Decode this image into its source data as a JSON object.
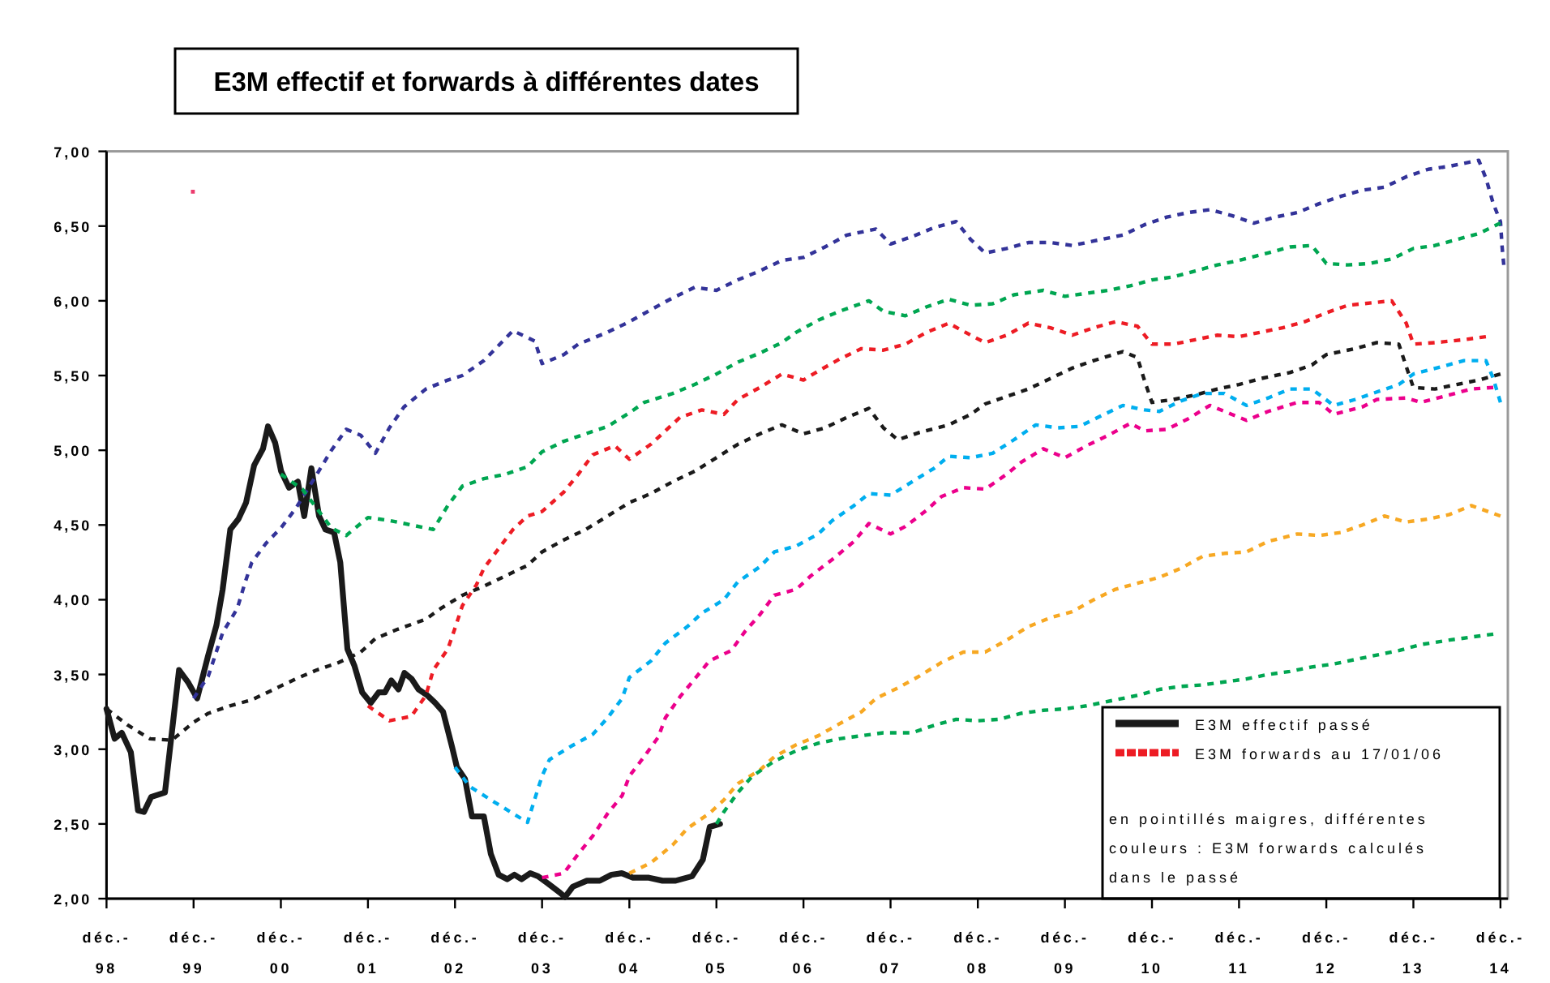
{
  "chart_data": {
    "type": "line",
    "title": "E3M effectif et forwards à différentes dates",
    "xlim": [
      "1998-12",
      "2015-01"
    ],
    "ylim": [
      2,
      7
    ],
    "xticks": [
      {
        "value": "1998-12",
        "label": "déc.-\n98"
      },
      {
        "value": "1999-12",
        "label": "déc.-\n99"
      },
      {
        "value": "2000-12",
        "label": "déc.-\n00"
      },
      {
        "value": "2001-12",
        "label": "déc.-\n01"
      },
      {
        "value": "2002-12",
        "label": "déc.-\n02"
      },
      {
        "value": "2003-12",
        "label": "déc.-\n03"
      },
      {
        "value": "2004-12",
        "label": "déc.-\n04"
      },
      {
        "value": "2005-12",
        "label": "déc.-\n05"
      },
      {
        "value": "2006-12",
        "label": "déc.-\n06"
      },
      {
        "value": "2007-12",
        "label": "déc.-\n07"
      },
      {
        "value": "2008-12",
        "label": "déc.-\n08"
      },
      {
        "value": "2009-12",
        "label": "déc.-\n09"
      },
      {
        "value": "2010-12",
        "label": "déc.-\n10"
      },
      {
        "value": "2011-12",
        "label": "déc.-\n11"
      },
      {
        "value": "2012-12",
        "label": "déc.-\n12"
      },
      {
        "value": "2013-12",
        "label": "déc.-\n13"
      },
      {
        "value": "2014-12",
        "label": "déc.-\n14"
      }
    ],
    "yticks": [
      {
        "value": 2,
        "label": "2,00"
      },
      {
        "value": 2.5,
        "label": "2,50"
      },
      {
        "value": 3,
        "label": "3,00"
      },
      {
        "value": 3.5,
        "label": "3,50"
      },
      {
        "value": 4,
        "label": "4,00"
      },
      {
        "value": 4.5,
        "label": "4,50"
      },
      {
        "value": 5,
        "label": "5,00"
      },
      {
        "value": 5.5,
        "label": "5,50"
      },
      {
        "value": 6,
        "label": "6,00"
      },
      {
        "value": 6.5,
        "label": "6,50"
      },
      {
        "value": 7,
        "label": "7,00"
      }
    ],
    "legend": "bottom right",
    "annotations": [
      "en pointillés maigres, différentes couleurs : E3M forwards calculés dans le passé"
    ],
    "series": [
      {
        "name": "E3M effectif passé",
        "color": "#1a1a1a",
        "line_style": "solid",
        "x": [
          "1998-12-01",
          "1999-01-04",
          "1999-02-03",
          "1999-03-13",
          "1999-04-12",
          "1999-05-07",
          "1999-06-06",
          "1999-08-03",
          "1999-10-01",
          "1999-11-07",
          "1999-12-16",
          "2000-01-30",
          "2000-03-06",
          "2000-04-01",
          "2000-05-03",
          "2000-06-06",
          "2000-07-08",
          "2000-08-11",
          "2000-09-17",
          "2000-10-08",
          "2000-11-07",
          "2000-12-02",
          "2001-01-04",
          "2001-02-10",
          "2001-03-09",
          "2001-04-08",
          "2001-05-10",
          "2001-06-06",
          "2001-07-12",
          "2001-08-07",
          "2001-09-06",
          "2001-10-05",
          "2001-11-07",
          "2001-12-13",
          "2002-01-15",
          "2002-02-10",
          "2002-03-09",
          "2002-04-08",
          "2002-05-03",
          "2002-06-02",
          "2002-07-01",
          "2002-08-07",
          "2002-09-09",
          "2002-10-12",
          "2002-11-18",
          "2002-12-09",
          "2003-01-12",
          "2003-02-10",
          "2003-04-01",
          "2003-04-30",
          "2003-06-02",
          "2003-07-08",
          "2003-08-07",
          "2003-09-06",
          "2003-10-12",
          "2003-11-14",
          "2003-12-27",
          "2004-02-14",
          "2004-03-06",
          "2004-04-08",
          "2004-06-06",
          "2004-07-30",
          "2004-09-17",
          "2004-10-30",
          "2004-12-16",
          "2005-02-21",
          "2005-04-19",
          "2005-06-13",
          "2005-08-21",
          "2005-10-05",
          "2005-11-03",
          "2005-12-16"
        ],
        "values": [
          3.27,
          3.07,
          3.11,
          2.98,
          2.59,
          2.58,
          2.68,
          2.71,
          3.53,
          3.45,
          3.34,
          3.62,
          3.83,
          4.07,
          4.47,
          4.54,
          4.65,
          4.9,
          5.01,
          5.16,
          5.05,
          4.86,
          4.75,
          4.79,
          4.56,
          4.88,
          4.56,
          4.47,
          4.45,
          4.25,
          3.67,
          3.56,
          3.38,
          3.31,
          3.38,
          3.38,
          3.46,
          3.4,
          3.51,
          3.47,
          3.4,
          3.36,
          3.31,
          3.25,
          3.02,
          2.88,
          2.8,
          2.55,
          2.55,
          2.3,
          2.16,
          2.13,
          2.16,
          2.13,
          2.17,
          2.15,
          2.1,
          2.04,
          2.01,
          2.08,
          2.12,
          2.12,
          2.16,
          2.17,
          2.14,
          2.14,
          2.12,
          2.12,
          2.15,
          2.26,
          2.48,
          2.5
        ]
      },
      {
        "name": "E3M forwards au 17/01/06",
        "color": "#ed1c24",
        "line_style": "dashed",
        "x": [
          "2001-12",
          "2002-03",
          "2002-06",
          "2002-08",
          "2002-09",
          "2002-11",
          "2002-12",
          "2003-01",
          "2003-03",
          "2003-04",
          "2003-06",
          "2003-08",
          "2003-10",
          "2003-12",
          "2004-03",
          "2004-05",
          "2004-07",
          "2004-10",
          "2004-12",
          "2005-03",
          "2005-05",
          "2005-07",
          "2005-10",
          "2006-01",
          "2006-03",
          "2006-06",
          "2006-09",
          "2006-12",
          "2007-02",
          "2007-05",
          "2007-08",
          "2007-11",
          "2008-02",
          "2008-05",
          "2008-08",
          "2008-11",
          "2009-01",
          "2009-04",
          "2009-07",
          "2009-10",
          "2010-01",
          "2010-04",
          "2010-07",
          "2010-10",
          "2010-12",
          "2011-03",
          "2011-06",
          "2011-09",
          "2011-12",
          "2012-03",
          "2012-06",
          "2012-09",
          "2012-12",
          "2013-03",
          "2013-07",
          "2013-09",
          "2013-11",
          "2013-12",
          "2014-03",
          "2014-07",
          "2014-10"
        ],
        "values": [
          3.29,
          3.19,
          3.22,
          3.36,
          3.53,
          3.67,
          3.81,
          3.96,
          4.1,
          4.21,
          4.34,
          4.47,
          4.56,
          4.59,
          4.72,
          4.84,
          4.97,
          5.03,
          4.94,
          5.04,
          5.13,
          5.22,
          5.27,
          5.24,
          5.34,
          5.42,
          5.51,
          5.47,
          5.53,
          5.61,
          5.68,
          5.67,
          5.71,
          5.79,
          5.85,
          5.77,
          5.72,
          5.77,
          5.85,
          5.82,
          5.77,
          5.82,
          5.86,
          5.83,
          5.71,
          5.71,
          5.74,
          5.77,
          5.76,
          5.79,
          5.82,
          5.86,
          5.92,
          5.97,
          5.99,
          6.0,
          5.85,
          5.71,
          5.72,
          5.74,
          5.76
        ]
      },
      {
        "color": "#333399",
        "line_style": "dashed",
        "x": [
          "1999-12",
          "2000-02",
          "2000-04",
          "2000-06",
          "2000-07",
          "2000-08",
          "2000-10",
          "2000-12",
          "2001-02",
          "2001-05",
          "2001-07",
          "2001-09",
          "2001-11",
          "2002-01",
          "2002-03",
          "2002-05",
          "2002-08",
          "2002-11",
          "2003-01",
          "2003-04",
          "2003-06",
          "2003-08",
          "2003-11",
          "2003-12",
          "2004-03",
          "2004-05",
          "2004-09",
          "2004-12",
          "2005-03",
          "2005-06",
          "2005-09",
          "2005-12",
          "2006-03",
          "2006-06",
          "2006-09",
          "2006-12",
          "2007-03",
          "2007-06",
          "2007-10",
          "2007-12",
          "2008-03",
          "2008-06",
          "2008-09",
          "2008-11",
          "2009-01",
          "2009-04",
          "2009-07",
          "2009-10",
          "2010-01",
          "2010-04",
          "2010-08",
          "2010-11",
          "2011-02",
          "2011-05",
          "2011-08",
          "2011-11",
          "2012-02",
          "2012-05",
          "2012-08",
          "2012-11",
          "2013-02",
          "2013-05",
          "2013-08",
          "2013-11",
          "2014-02",
          "2014-05",
          "2014-09",
          "2014-10",
          "2014-11",
          "2014-12-01",
          "2014-12-08",
          "2014-12-15"
        ],
        "values": [
          3.34,
          3.49,
          3.78,
          3.94,
          4.1,
          4.25,
          4.38,
          4.48,
          4.61,
          4.84,
          5.0,
          5.14,
          5.1,
          4.98,
          5.15,
          5.29,
          5.41,
          5.47,
          5.5,
          5.6,
          5.7,
          5.8,
          5.73,
          5.58,
          5.64,
          5.71,
          5.79,
          5.86,
          5.94,
          6.02,
          6.09,
          6.07,
          6.14,
          6.2,
          6.27,
          6.29,
          6.36,
          6.44,
          6.48,
          6.38,
          6.43,
          6.49,
          6.53,
          6.41,
          6.32,
          6.35,
          6.39,
          6.39,
          6.37,
          6.4,
          6.44,
          6.51,
          6.56,
          6.59,
          6.61,
          6.57,
          6.52,
          6.56,
          6.59,
          6.65,
          6.7,
          6.74,
          6.76,
          6.83,
          6.88,
          6.9,
          6.94,
          6.82,
          6.65,
          6.53,
          6.36,
          6.24
        ]
      },
      {
        "color": "#1a1a1a",
        "line_style": "dashed",
        "x": [
          "1998-12",
          "1999-03",
          "1999-06",
          "1999-09",
          "1999-12",
          "2000-02",
          "2000-05",
          "2000-08",
          "2000-11",
          "2001-02",
          "2001-05",
          "2001-08",
          "2001-11",
          "2002-01",
          "2002-04",
          "2002-08",
          "2002-10",
          "2003-01",
          "2003-04",
          "2003-07",
          "2003-10",
          "2003-12",
          "2004-03",
          "2004-06",
          "2004-09",
          "2004-12",
          "2005-03",
          "2005-06",
          "2005-09",
          "2005-12",
          "2006-03",
          "2006-06",
          "2006-09",
          "2006-12",
          "2007-03",
          "2007-06",
          "2007-09",
          "2007-11",
          "2008-01",
          "2008-04",
          "2008-08",
          "2008-11",
          "2009-01",
          "2009-04",
          "2009-07",
          "2009-10",
          "2010-01",
          "2010-04",
          "2010-08",
          "2010-10",
          "2010-11",
          "2010-12",
          "2011-03",
          "2011-06",
          "2011-09",
          "2011-12",
          "2012-03",
          "2012-07",
          "2012-10",
          "2012-12",
          "2013-04",
          "2013-07",
          "2013-10",
          "2013-11",
          "2013-12",
          "2014-03",
          "2014-06",
          "2014-09",
          "2014-12"
        ],
        "values": [
          3.27,
          3.16,
          3.07,
          3.06,
          3.18,
          3.24,
          3.29,
          3.33,
          3.4,
          3.47,
          3.53,
          3.58,
          3.65,
          3.74,
          3.8,
          3.87,
          3.94,
          4.03,
          4.09,
          4.16,
          4.23,
          4.32,
          4.4,
          4.47,
          4.56,
          4.65,
          4.71,
          4.79,
          4.86,
          4.95,
          5.04,
          5.11,
          5.17,
          5.11,
          5.15,
          5.22,
          5.28,
          5.15,
          5.07,
          5.12,
          5.17,
          5.24,
          5.31,
          5.36,
          5.41,
          5.48,
          5.55,
          5.6,
          5.66,
          5.62,
          5.46,
          5.32,
          5.34,
          5.37,
          5.41,
          5.44,
          5.48,
          5.52,
          5.57,
          5.64,
          5.68,
          5.72,
          5.71,
          5.56,
          5.42,
          5.41,
          5.44,
          5.47,
          5.51
        ]
      },
      {
        "color": "#00a651",
        "line_style": "dashed",
        "x": [
          "2000-12",
          "2001-03",
          "2001-05",
          "2001-07",
          "2001-09",
          "2001-12",
          "2002-03",
          "2002-06",
          "2002-09",
          "2002-11",
          "2003-01",
          "2003-04",
          "2003-07",
          "2003-10",
          "2003-12",
          "2004-03",
          "2004-06",
          "2004-09",
          "2004-12",
          "2005-02",
          "2005-06",
          "2005-09",
          "2005-12",
          "2006-03",
          "2006-06",
          "2006-09",
          "2006-11",
          "2007-02",
          "2007-05",
          "2007-09",
          "2007-11",
          "2008-02",
          "2008-05",
          "2008-08",
          "2008-11",
          "2009-02",
          "2009-05",
          "2009-09",
          "2009-12",
          "2010-03",
          "2010-06",
          "2010-09",
          "2010-12",
          "2011-03",
          "2011-06",
          "2011-09",
          "2011-12",
          "2012-04",
          "2012-07",
          "2012-10",
          "2012-12",
          "2013-03",
          "2013-06",
          "2013-09",
          "2013-12",
          "2014-03",
          "2014-06",
          "2014-09",
          "2014-12"
        ],
        "values": [
          4.84,
          4.74,
          4.61,
          4.48,
          4.43,
          4.55,
          4.53,
          4.5,
          4.47,
          4.63,
          4.76,
          4.81,
          4.84,
          4.89,
          4.99,
          5.06,
          5.11,
          5.16,
          5.25,
          5.32,
          5.38,
          5.44,
          5.51,
          5.59,
          5.65,
          5.72,
          5.79,
          5.87,
          5.93,
          6.0,
          5.93,
          5.9,
          5.96,
          6.01,
          5.97,
          5.98,
          6.04,
          6.07,
          6.03,
          6.05,
          6.07,
          6.1,
          6.14,
          6.16,
          6.2,
          6.24,
          6.27,
          6.32,
          6.36,
          6.37,
          6.25,
          6.24,
          6.25,
          6.28,
          6.35,
          6.37,
          6.41,
          6.45,
          6.52
        ]
      },
      {
        "color": "#00aeef",
        "line_style": "dashed",
        "x": [
          "2002-12",
          "2003-02",
          "2003-05",
          "2003-08",
          "2003-10",
          "2003-11",
          "2003-12",
          "2004-01",
          "2004-04",
          "2004-07",
          "2004-09",
          "2004-11",
          "2004-12",
          "2005-03",
          "2005-05",
          "2005-08",
          "2005-10",
          "2006-01",
          "2006-03",
          "2006-06",
          "2006-08",
          "2006-11",
          "2007-02",
          "2007-04",
          "2007-07",
          "2007-09",
          "2007-12",
          "2008-03",
          "2008-06",
          "2008-08",
          "2008-11",
          "2009-02",
          "2009-05",
          "2009-08",
          "2009-11",
          "2010-02",
          "2010-05",
          "2010-08",
          "2010-11",
          "2011-01",
          "2011-04",
          "2011-07",
          "2011-10",
          "2012-01",
          "2012-04",
          "2012-07",
          "2012-10",
          "2013-01",
          "2013-04",
          "2013-07",
          "2013-10",
          "2013-12",
          "2014-04",
          "2014-07",
          "2014-10",
          "2014-11",
          "2014-12"
        ],
        "values": [
          2.88,
          2.75,
          2.66,
          2.57,
          2.51,
          2.67,
          2.82,
          2.93,
          3.02,
          3.1,
          3.21,
          3.34,
          3.48,
          3.59,
          3.71,
          3.82,
          3.91,
          4.0,
          4.12,
          4.22,
          4.32,
          4.36,
          4.44,
          4.53,
          4.63,
          4.71,
          4.7,
          4.79,
          4.88,
          4.96,
          4.95,
          4.98,
          5.07,
          5.17,
          5.15,
          5.16,
          5.23,
          5.3,
          5.27,
          5.26,
          5.33,
          5.38,
          5.38,
          5.3,
          5.35,
          5.41,
          5.41,
          5.3,
          5.34,
          5.39,
          5.44,
          5.51,
          5.56,
          5.6,
          5.6,
          5.48,
          5.32
        ]
      },
      {
        "color": "#ec008c",
        "line_style": "dashed",
        "x": [
          "2003-12",
          "2004-03",
          "2004-05",
          "2004-07",
          "2004-09",
          "2004-11",
          "2004-12",
          "2005-02",
          "2005-04",
          "2005-05",
          "2005-07",
          "2005-09",
          "2005-11",
          "2006-02",
          "2006-04",
          "2006-06",
          "2006-08",
          "2006-11",
          "2007-01",
          "2007-04",
          "2007-07",
          "2007-09",
          "2007-12",
          "2008-02",
          "2008-05",
          "2008-07",
          "2008-10",
          "2009-01",
          "2009-04",
          "2009-06",
          "2009-09",
          "2009-12",
          "2010-03",
          "2010-06",
          "2010-09",
          "2010-11",
          "2011-02",
          "2011-05",
          "2011-08",
          "2011-11",
          "2012-01",
          "2012-04",
          "2012-08",
          "2012-11",
          "2013-01",
          "2013-05",
          "2013-07",
          "2013-11",
          "2014-01",
          "2014-05",
          "2014-08",
          "2014-11"
        ],
        "values": [
          2.14,
          2.17,
          2.3,
          2.42,
          2.57,
          2.69,
          2.82,
          2.95,
          3.08,
          3.21,
          3.35,
          3.47,
          3.59,
          3.66,
          3.79,
          3.9,
          4.03,
          4.07,
          4.16,
          4.27,
          4.39,
          4.51,
          4.44,
          4.49,
          4.6,
          4.69,
          4.75,
          4.74,
          4.84,
          4.92,
          5.01,
          4.95,
          5.03,
          5.1,
          5.18,
          5.13,
          5.14,
          5.21,
          5.3,
          5.24,
          5.2,
          5.26,
          5.32,
          5.32,
          5.24,
          5.29,
          5.34,
          5.35,
          5.32,
          5.37,
          5.41,
          5.42
        ]
      },
      {
        "color": "#f7a823",
        "line_style": "dashed",
        "x": [
          "2004-12",
          "2005-03",
          "2005-06",
          "2005-08",
          "2005-11",
          "2006-01",
          "2006-03",
          "2006-06",
          "2006-08",
          "2006-11",
          "2007-02",
          "2007-05",
          "2007-08",
          "2007-10",
          "2008-01",
          "2008-04",
          "2008-07",
          "2008-10",
          "2009-01",
          "2009-04",
          "2009-07",
          "2009-10",
          "2010-01",
          "2010-04",
          "2010-07",
          "2010-10",
          "2011-01",
          "2011-04",
          "2011-07",
          "2011-10",
          "2012-01",
          "2012-04",
          "2012-08",
          "2012-11",
          "2013-02",
          "2013-05",
          "2013-08",
          "2013-11",
          "2014-02",
          "2014-05",
          "2014-08",
          "2014-12"
        ],
        "values": [
          2.17,
          2.24,
          2.36,
          2.47,
          2.57,
          2.66,
          2.77,
          2.86,
          2.95,
          3.03,
          3.09,
          3.17,
          3.25,
          3.34,
          3.41,
          3.49,
          3.58,
          3.65,
          3.65,
          3.73,
          3.82,
          3.88,
          3.92,
          4.0,
          4.07,
          4.11,
          4.15,
          4.21,
          4.29,
          4.31,
          4.32,
          4.39,
          4.44,
          4.43,
          4.45,
          4.5,
          4.56,
          4.52,
          4.54,
          4.57,
          4.63,
          4.56
        ]
      },
      {
        "color": "#00a651",
        "line_style": "dashed",
        "x": [
          "2005-12",
          "2006-01",
          "2006-03",
          "2006-05",
          "2006-08",
          "2006-11",
          "2007-02",
          "2007-05",
          "2007-08",
          "2007-11",
          "2008-03",
          "2008-06",
          "2008-09",
          "2008-12",
          "2009-03",
          "2009-06",
          "2009-09",
          "2009-12",
          "2010-03",
          "2010-07",
          "2010-10",
          "2011-01",
          "2011-04",
          "2011-07",
          "2011-10",
          "2012-01",
          "2012-04",
          "2012-07",
          "2012-10",
          "2013-01",
          "2013-04",
          "2013-07",
          "2013-10",
          "2014-01",
          "2014-05",
          "2014-08",
          "2014-11"
        ],
        "values": [
          2.5,
          2.58,
          2.71,
          2.82,
          2.92,
          2.99,
          3.04,
          3.07,
          3.09,
          3.11,
          3.11,
          3.16,
          3.2,
          3.19,
          3.2,
          3.24,
          3.26,
          3.27,
          3.29,
          3.33,
          3.36,
          3.4,
          3.42,
          3.43,
          3.45,
          3.47,
          3.5,
          3.52,
          3.55,
          3.57,
          3.6,
          3.63,
          3.66,
          3.7,
          3.73,
          3.75,
          3.77
        ]
      },
      {
        "type": "scatter",
        "marker": "square",
        "color": "#ec3b6e",
        "x": [
          "1999-11-28"
        ],
        "values": [
          6.73
        ]
      }
    ]
  }
}
